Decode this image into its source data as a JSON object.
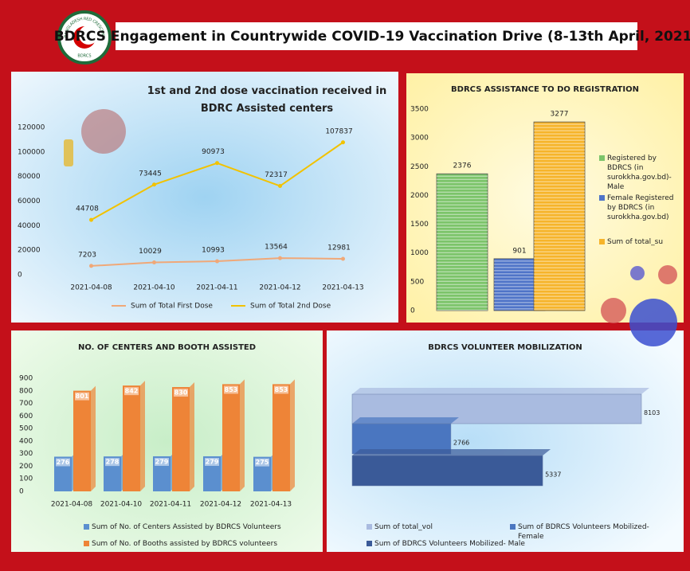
{
  "header": {
    "title": "BDRCS Engagement in Countrywide COVID-19 Vaccination Drive (8-13th April, 2021)",
    "logo_text": "BANGLADESH RED CRESCENT SOCIETY",
    "logo_abbr": "BDRCS"
  },
  "chart_data": [
    {
      "type": "line",
      "title": "1st and 2nd dose vaccination received in BDRC Assisted centers",
      "categories": [
        "2021-04-08",
        "2021-04-10",
        "2021-04-11",
        "2021-04-12",
        "2021-04-13"
      ],
      "series": [
        {
          "name": "Sum of Total First Dose",
          "color": "#f0a878",
          "values": [
            7203,
            10029,
            10993,
            13564,
            12981
          ]
        },
        {
          "name": "Sum of Total 2nd Dose",
          "color": "#f2c200",
          "values": [
            44708,
            73445,
            90973,
            72317,
            107837
          ]
        }
      ],
      "ylim": [
        0,
        120000
      ],
      "yticks": [
        0,
        20000,
        40000,
        60000,
        80000,
        100000,
        120000
      ],
      "grid": false,
      "legend": "bottom"
    },
    {
      "type": "bar",
      "title": "BDRCS ASSISTANCE TO DO REGISTRATION",
      "series": [
        {
          "name": "Registered by BDRCS (in surokkha.gov.bd)- Male",
          "color": "#7cc46a",
          "values": [
            2376
          ]
        },
        {
          "name": "Female Registered by BDRCS (in surokkha.gov.bd)",
          "color": "#4f74c8",
          "values": [
            901
          ]
        },
        {
          "name": "Sum of total_su",
          "color": "#f6b42a",
          "values": [
            3277
          ]
        }
      ],
      "ylim": [
        0,
        3500
      ],
      "yticks": [
        0,
        500,
        1000,
        1500,
        2000,
        2500,
        3000,
        3500
      ],
      "grid": false,
      "legend": "right"
    },
    {
      "type": "grouped-bar",
      "title": "NO. OF CENTERS AND BOOTH ASSISTED",
      "categories": [
        "2021-04-08",
        "2021-04-10",
        "2021-04-11",
        "2021-04-12",
        "2021-04-13"
      ],
      "series": [
        {
          "name": "Sum of No. of Centers Assisted by BDRCS Volunteers",
          "color": "#5b8fcf",
          "values": [
            276,
            278,
            279,
            279,
            275
          ]
        },
        {
          "name": "Sum of No. of Booths assisted by BDRCS volunteers",
          "color": "#ee8437",
          "values": [
            801,
            842,
            830,
            853,
            853
          ]
        }
      ],
      "ylim": [
        0,
        900
      ],
      "yticks": [
        0,
        100,
        200,
        300,
        400,
        500,
        600,
        700,
        800,
        900
      ],
      "grid": false,
      "legend": "bottom"
    },
    {
      "type": "hbar",
      "title": "BDRCS VOLUNTEER MOBILIZATION",
      "series": [
        {
          "name": "Sum of total_vol",
          "color": "#a9bbe0",
          "values": [
            8103
          ]
        },
        {
          "name": "Sum of BDRCS Volunteers Mobilized- Female",
          "color": "#4a76c0",
          "values": [
            2766
          ]
        },
        {
          "name": "Sum of BDRCS Volunteers Mobilized- Male",
          "color": "#3a5a98",
          "values": [
            5337
          ]
        }
      ],
      "grid": false,
      "legend": "bottom"
    }
  ]
}
